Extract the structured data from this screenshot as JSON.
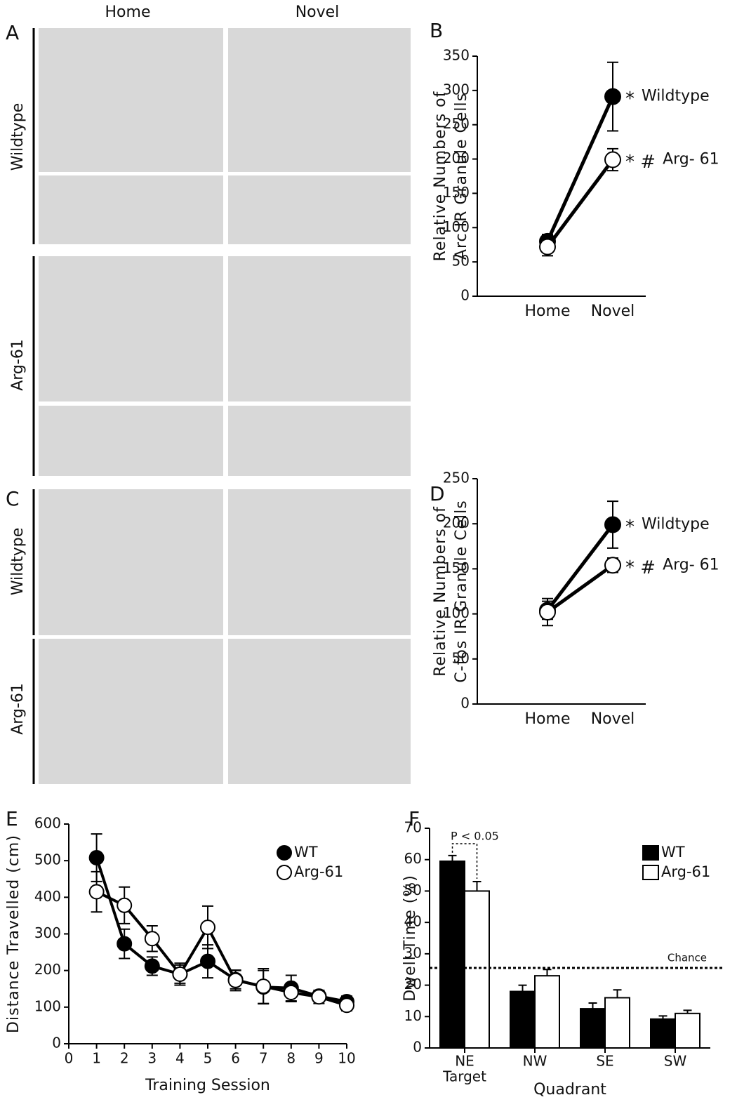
{
  "images": {
    "A": {
      "label": "A",
      "columns": [
        "Home",
        "Novel"
      ],
      "rows": [
        "Wildtype",
        "Arg-61"
      ]
    },
    "C": {
      "label": "C",
      "rows": [
        "Wildtype",
        "Arg-61"
      ]
    }
  },
  "chart_data": [
    {
      "type": "line",
      "label": "B",
      "categories": [
        "Home",
        "Novel"
      ],
      "ylabel": [
        "Relative Numbers of",
        "Arc IR Granule Cells"
      ],
      "ylim": [
        0,
        350
      ],
      "yticks": [
        0,
        50,
        100,
        150,
        200,
        250,
        300,
        350
      ],
      "series": [
        {
          "name": "Wildtype",
          "color": "#000000",
          "values": [
            80,
            291
          ],
          "errors": [
            10,
            50
          ],
          "annotation": "*"
        },
        {
          "name": "Arg- 61",
          "color": "#ffffff",
          "values": [
            72,
            199
          ],
          "errors": [
            13,
            16
          ],
          "annotation": "* #"
        }
      ]
    },
    {
      "type": "line",
      "label": "D",
      "categories": [
        "Home",
        "Novel"
      ],
      "ylabel": [
        "Relative Numbers of",
        "C-fos IR Granule Cells"
      ],
      "ylim": [
        0,
        250
      ],
      "yticks": [
        0,
        50,
        100,
        150,
        200,
        250
      ],
      "series": [
        {
          "name": "Wildtype",
          "color": "#000000",
          "values": [
            104,
            199
          ],
          "errors": [
            10,
            26
          ],
          "annotation": "*"
        },
        {
          "name": "Arg- 61",
          "color": "#ffffff",
          "values": [
            102,
            154
          ],
          "errors": [
            15,
            8
          ],
          "annotation": "* #"
        }
      ]
    },
    {
      "type": "line",
      "label": "E",
      "x": [
        1,
        2,
        3,
        4,
        5,
        6,
        7,
        8,
        9,
        10
      ],
      "xlabel": "Training Session",
      "ylabel": [
        "Distance Travelled (cm)"
      ],
      "xlim": [
        0,
        10
      ],
      "xticks": [
        0,
        1,
        2,
        3,
        4,
        5,
        6,
        7,
        8,
        9,
        10
      ],
      "ylim": [
        0,
        600
      ],
      "yticks": [
        0,
        100,
        200,
        300,
        400,
        500,
        600
      ],
      "series": [
        {
          "name": "WT",
          "color": "#000000",
          "values": [
            508,
            273,
            212,
            190,
            225,
            175,
            155,
            152,
            130,
            115
          ],
          "errors": [
            65,
            40,
            25,
            25,
            45,
            25,
            45,
            35,
            15,
            15
          ]
        },
        {
          "name": "Arg-61",
          "color": "#ffffff",
          "values": [
            415,
            378,
            287,
            190,
            318,
            173,
            157,
            140,
            128,
            105
          ],
          "errors": [
            55,
            50,
            35,
            30,
            58,
            28,
            48,
            25,
            18,
            15
          ]
        }
      ]
    },
    {
      "type": "bar",
      "label": "F",
      "categories": [
        "NE",
        "NW",
        "SE",
        "SW"
      ],
      "category_sublabels": [
        "Target",
        null,
        null,
        null
      ],
      "xlabel": "Quadrant",
      "ylabel": [
        "Dwell Time (%)"
      ],
      "ylim": [
        0,
        70
      ],
      "yticks": [
        0,
        10,
        20,
        30,
        40,
        50,
        60,
        70
      ],
      "reference_line": {
        "value": 25.5,
        "label": "Chance"
      },
      "annotation": "P < 0.05",
      "series": [
        {
          "name": "WT",
          "color": "#000000",
          "values": [
            59.5,
            18,
            12.5,
            9.2
          ],
          "errors": [
            1.8,
            2,
            1.8,
            1
          ]
        },
        {
          "name": "Arg-61",
          "color": "#ffffff",
          "values": [
            50,
            23,
            16,
            11
          ],
          "errors": [
            3,
            2,
            2.5,
            1
          ]
        }
      ]
    }
  ]
}
